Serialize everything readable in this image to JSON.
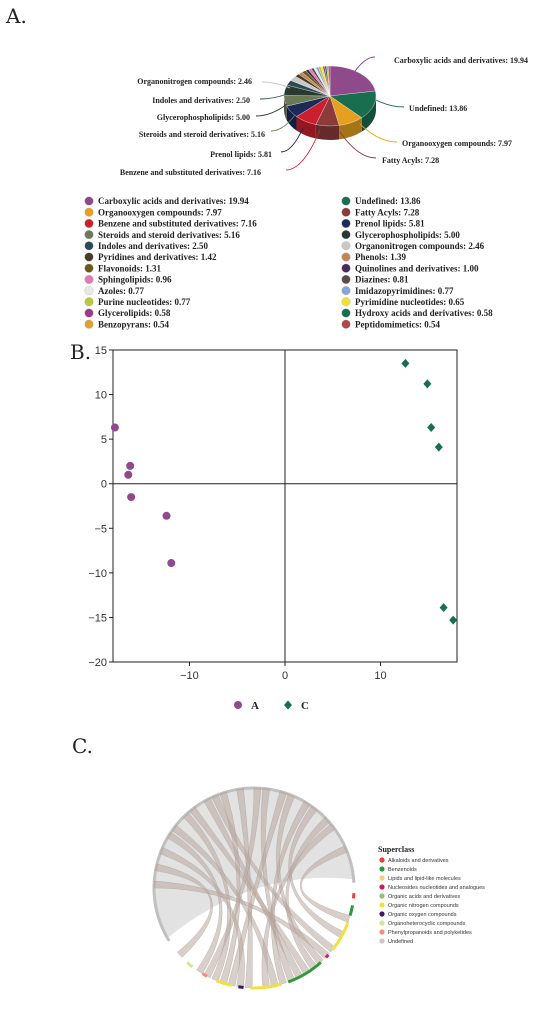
{
  "panels": {
    "a": "A.",
    "b": "B.",
    "c": "C."
  },
  "chart_data": [
    {
      "type": "pie",
      "slices": [
        {
          "label": "Carboxylic acids and derivatives",
          "value": 19.94,
          "color": "#8e4a8a"
        },
        {
          "label": "Undefined",
          "value": 13.86,
          "color": "#1a6e50"
        },
        {
          "label": "Organooxygen compounds",
          "value": 7.97,
          "color": "#e6a020"
        },
        {
          "label": "Fatty Acyls",
          "value": 7.28,
          "color": "#8c3a3a"
        },
        {
          "label": "Benzene and substituted derivatives",
          "value": 7.16,
          "color": "#cc1f2e"
        },
        {
          "label": "Prenol lipids",
          "value": 5.81,
          "color": "#1c2a5a"
        },
        {
          "label": "Steroids and steroid derivatives",
          "value": 5.16,
          "color": "#6b7a55"
        },
        {
          "label": "Glycerophospholipids",
          "value": 5.0,
          "color": "#2a3a30"
        },
        {
          "label": "Indoles and derivatives",
          "value": 2.5,
          "color": "#2a4a55"
        },
        {
          "label": "Organonitrogen compounds",
          "value": 2.46,
          "color": "#c8c8c8"
        },
        {
          "label": "Pyridines and derivatives",
          "value": 1.42,
          "color": "#4a3a2a"
        },
        {
          "label": "Phenols",
          "value": 1.39,
          "color": "#c0885a"
        },
        {
          "label": "Flavonoids",
          "value": 1.31,
          "color": "#6a5a18"
        },
        {
          "label": "Quinolines and derivatives",
          "value": 1.0,
          "color": "#4a2a5a"
        },
        {
          "label": "Sphingolipids",
          "value": 0.96,
          "color": "#e07ab0"
        },
        {
          "label": "Diazines",
          "value": 0.81,
          "color": "#5a4a4a"
        },
        {
          "label": "Azoles",
          "value": 0.77,
          "color": "#e8e8e8"
        },
        {
          "label": "Imidazopyrimidines",
          "value": 0.77,
          "color": "#8aa4d8"
        },
        {
          "label": "Purine nucleotides",
          "value": 0.77,
          "color": "#b8c83a"
        },
        {
          "label": "Pyrimidine nucleotides",
          "value": 0.65,
          "color": "#f0e030"
        },
        {
          "label": "Glycerolipids",
          "value": 0.58,
          "color": "#9a3a8a"
        },
        {
          "label": "Hydroxy acids and derivatives",
          "value": 0.58,
          "color": "#1a6e50"
        },
        {
          "label": "Benzopyrans",
          "value": 0.54,
          "color": "#e0a030"
        },
        {
          "label": "Peptidomimetics",
          "value": 0.54,
          "color": "#b04a4a"
        }
      ],
      "callouts": [
        "Carboxylic acids and derivatives: 19.94",
        "Undefined: 13.86",
        "Organooxygen compounds: 7.97",
        "Fatty Acyls: 7.28",
        "Benzene and substituted derivatives: 7.16",
        "Prenol lipids: 5.81",
        "Steroids and steroid derivatives: 5.16",
        "Glycerophospholipids: 5.00",
        "Indoles and derivatives: 2.50",
        "Organonitrogen compounds: 2.46"
      ],
      "legend": [
        {
          "text": "Carboxylic acids and derivatives: 19.94",
          "color": "#8e4a8a"
        },
        {
          "text": "Undefined: 13.86",
          "color": "#1a6e50"
        },
        {
          "text": "Organooxygen compounds: 7.97",
          "color": "#e6a020"
        },
        {
          "text": "Fatty Acyls: 7.28",
          "color": "#8c3a3a"
        },
        {
          "text": "Benzene and substituted derivatives: 7.16",
          "color": "#cc1f2e"
        },
        {
          "text": "Prenol lipids: 5.81",
          "color": "#1c2a5a"
        },
        {
          "text": "Steroids and steroid derivatives: 5.16",
          "color": "#6b7a55"
        },
        {
          "text": "Glycerophospholipids: 5.00",
          "color": "#2a3a30"
        },
        {
          "text": "Indoles and derivatives: 2.50",
          "color": "#2a4a55"
        },
        {
          "text": "Organonitrogen compounds: 2.46",
          "color": "#c8c8c8"
        },
        {
          "text": "Pyridines and derivatives: 1.42",
          "color": "#4a3a2a"
        },
        {
          "text": "Phenols: 1.39",
          "color": "#c0885a"
        },
        {
          "text": "Flavonoids: 1.31",
          "color": "#6a5a18"
        },
        {
          "text": "Quinolines and derivatives: 1.00",
          "color": "#4a2a5a"
        },
        {
          "text": "Sphingolipids: 0.96",
          "color": "#e07ab0"
        },
        {
          "text": "Diazines: 0.81",
          "color": "#5a4a4a"
        },
        {
          "text": "Azoles: 0.77",
          "color": "#e8e8e8"
        },
        {
          "text": "Imidazopyrimidines: 0.77",
          "color": "#8aa4d8"
        },
        {
          "text": "Purine nucleotides: 0.77",
          "color": "#b8c83a"
        },
        {
          "text": "Pyrimidine nucleotides: 0.65",
          "color": "#f0e030"
        },
        {
          "text": "Glycerolipids: 0.58",
          "color": "#9a3a8a"
        },
        {
          "text": "Hydroxy acids and derivatives: 0.58",
          "color": "#1a6e50"
        },
        {
          "text": "Benzopyrans: 0.54",
          "color": "#e0a030"
        },
        {
          "text": "Peptidomimetics: 0.54",
          "color": "#b04a4a"
        }
      ]
    },
    {
      "type": "scatter",
      "xlim": [
        -18,
        18
      ],
      "ylim": [
        -20,
        15
      ],
      "xticks": [
        -10,
        0,
        10
      ],
      "yticks": [
        15,
        10,
        5,
        0,
        -5,
        -10,
        -15,
        -20
      ],
      "series": [
        {
          "name": "A",
          "color": "#8e4a8a",
          "marker": "circle",
          "points": [
            [
              -17.8,
              6.3
            ],
            [
              -16.2,
              2.0
            ],
            [
              -16.4,
              1.0
            ],
            [
              -16.1,
              -1.5
            ],
            [
              -12.4,
              -3.6
            ],
            [
              -11.9,
              -8.9
            ]
          ]
        },
        {
          "name": "C",
          "color": "#1a6e50",
          "marker": "diamond",
          "points": [
            [
              12.6,
              13.5
            ],
            [
              14.9,
              11.2
            ],
            [
              15.3,
              6.3
            ],
            [
              16.1,
              4.1
            ],
            [
              16.6,
              -13.9
            ],
            [
              17.6,
              -15.3
            ]
          ]
        }
      ]
    },
    {
      "type": "chord",
      "legend_title": "Superclass",
      "legend": [
        {
          "label": "Alkaloids and derivatives",
          "color": "#e8403a"
        },
        {
          "label": "Benzenoids",
          "color": "#2e9a3a"
        },
        {
          "label": "Lipids and lipid-like molecules",
          "color": "#f2d080"
        },
        {
          "label": "Nucleosides nucleotides and analogues",
          "color": "#c81e5a"
        },
        {
          "label": "Organic acids and derivatives",
          "color": "#90c070"
        },
        {
          "label": "Organic nitrogen compounds",
          "color": "#f0e040"
        },
        {
          "label": "Organic oxygen compounds",
          "color": "#3a1a5a"
        },
        {
          "label": "Organoheterocyclic compounds",
          "color": "#d0e890"
        },
        {
          "label": "Phenylpropanoids and polyketides",
          "color": "#f0907a"
        },
        {
          "label": "Undefined",
          "color": "#c8c8c8"
        }
      ]
    }
  ]
}
